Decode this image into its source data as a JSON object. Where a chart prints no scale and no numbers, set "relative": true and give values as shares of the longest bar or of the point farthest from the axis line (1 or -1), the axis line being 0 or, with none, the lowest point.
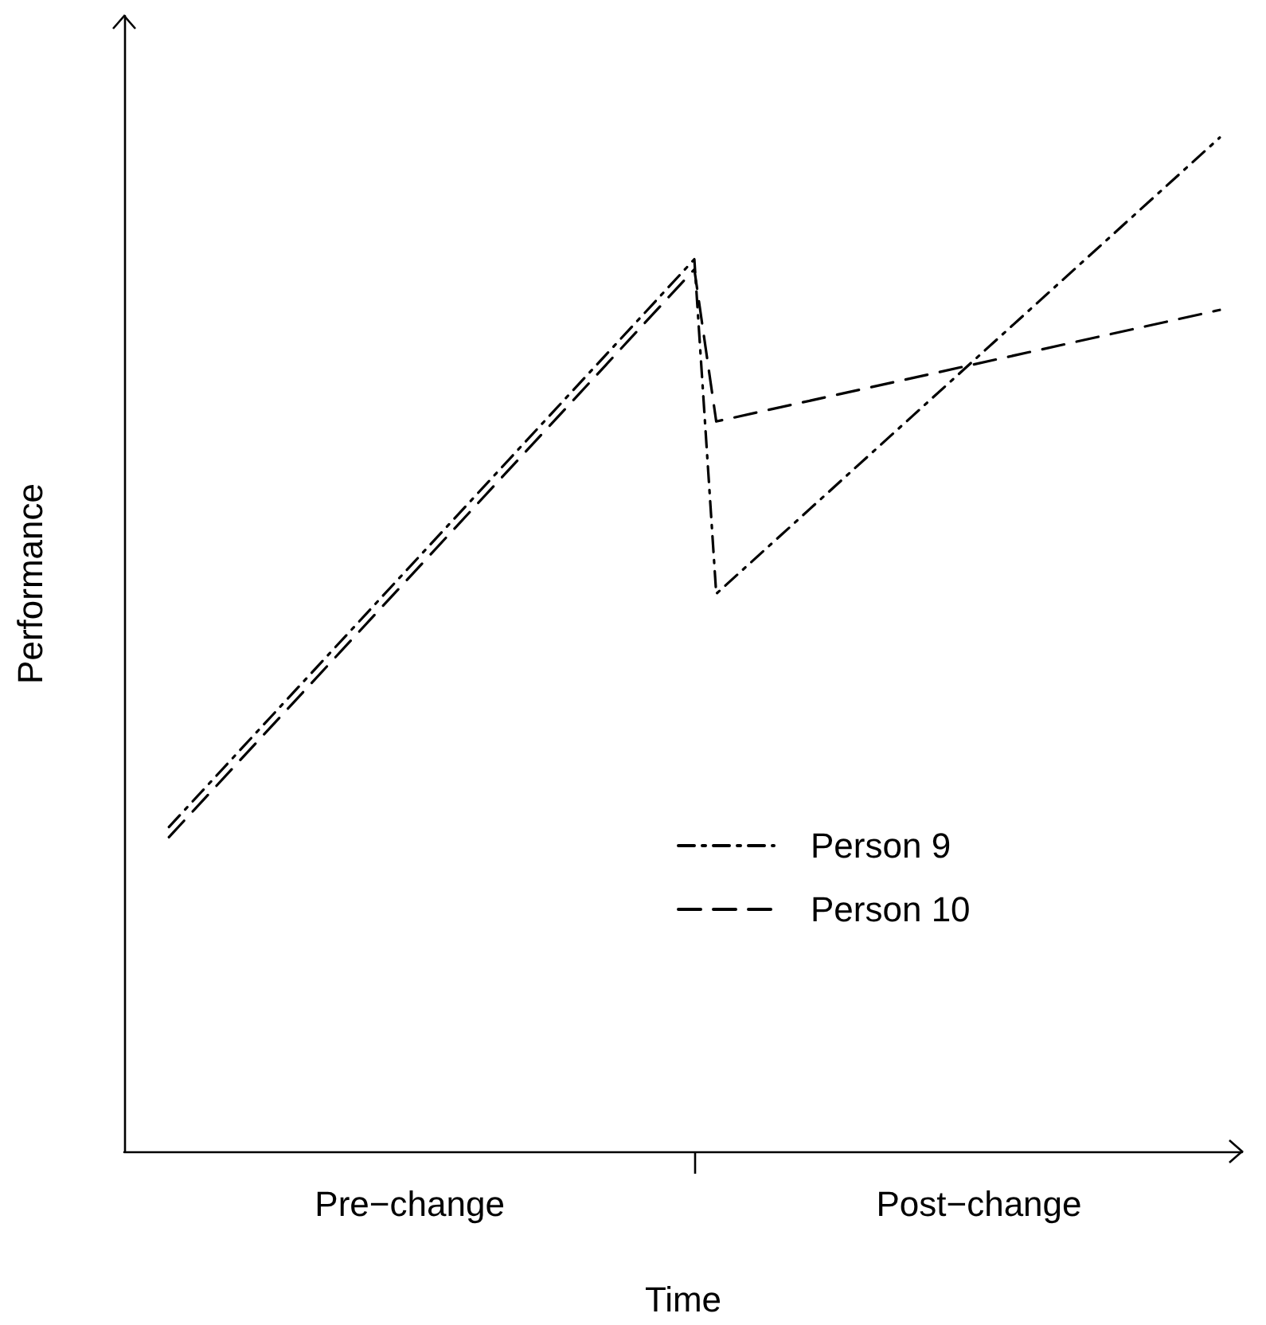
{
  "chart_data": {
    "type": "line",
    "relative": true,
    "xlabel": "Time",
    "ylabel": "Performance",
    "tick_labels": "x",
    "legend": "bottom right",
    "marker": "none",
    "grid": false,
    "categories": [
      null,
      null,
      null,
      null,
      null,
      null,
      null,
      null,
      null,
      null,
      null,
      "Pre−change",
      null,
      null,
      null,
      null,
      null,
      null,
      null,
      null,
      null,
      null,
      null,
      null,
      null,
      null,
      null,
      null,
      null,
      null,
      null,
      null,
      null,
      null,
      null,
      null,
      null,
      "Post−change",
      null,
      null,
      null,
      null,
      null,
      null,
      null,
      null,
      null,
      null,
      null
    ],
    "series": [
      {
        "name": "Person 9",
        "color": "#000000",
        "line_style": "dashdot",
        "values": [
          0.32,
          null,
          null,
          null,
          null,
          null,
          null,
          null,
          null,
          null,
          null,
          null,
          null,
          null,
          null,
          null,
          null,
          null,
          null,
          null,
          null,
          null,
          null,
          null,
          0.88,
          0.55,
          null,
          null,
          null,
          null,
          null,
          null,
          null,
          null,
          null,
          null,
          null,
          null,
          null,
          null,
          null,
          null,
          null,
          null,
          null,
          null,
          null,
          null,
          1
        ]
      },
      {
        "name": "Person 10",
        "color": "#000000",
        "line_style": "dashed",
        "values": [
          0.31,
          null,
          null,
          null,
          null,
          null,
          null,
          null,
          null,
          null,
          null,
          null,
          null,
          null,
          null,
          null,
          null,
          null,
          null,
          null,
          null,
          null,
          null,
          null,
          0.87,
          0.72,
          null,
          null,
          null,
          null,
          null,
          null,
          null,
          null,
          null,
          null,
          null,
          null,
          null,
          null,
          null,
          null,
          null,
          null,
          null,
          null,
          null,
          null,
          0.83
        ]
      }
    ]
  }
}
